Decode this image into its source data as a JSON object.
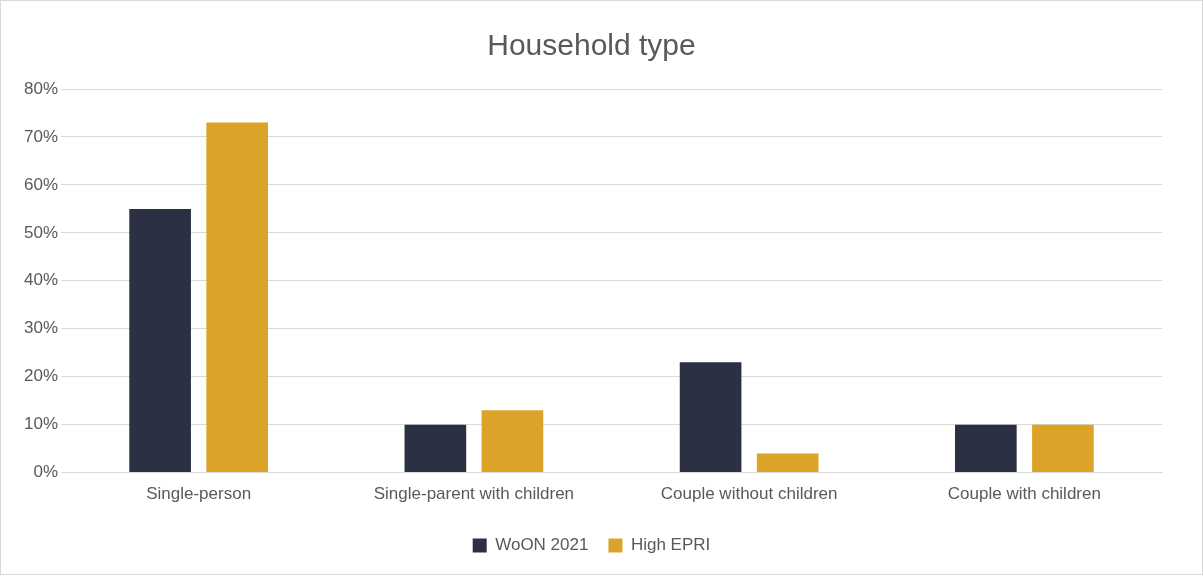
{
  "chart_data": {
    "type": "bar",
    "title": "Household type",
    "categories": [
      "Single-person",
      "Single-parent with children",
      "Couple without children",
      "Couple with children"
    ],
    "series": [
      {
        "name": "WoON 2021",
        "color": "#2b3142",
        "values": [
          55,
          10,
          23,
          10
        ]
      },
      {
        "name": "High EPRI",
        "color": "#dba429",
        "values": [
          73,
          13,
          4,
          10
        ]
      }
    ],
    "ylim": [
      0,
      80
    ],
    "yticks": [
      {
        "value": 0,
        "label": "0%"
      },
      {
        "value": 10,
        "label": "10%"
      },
      {
        "value": 20,
        "label": "20%"
      },
      {
        "value": 30,
        "label": "30%"
      },
      {
        "value": 40,
        "label": "40%"
      },
      {
        "value": 50,
        "label": "50%"
      },
      {
        "value": 60,
        "label": "60%"
      },
      {
        "value": 70,
        "label": "70%"
      },
      {
        "value": 80,
        "label": "80%"
      }
    ],
    "grid": "y",
    "legend": "bottom"
  }
}
